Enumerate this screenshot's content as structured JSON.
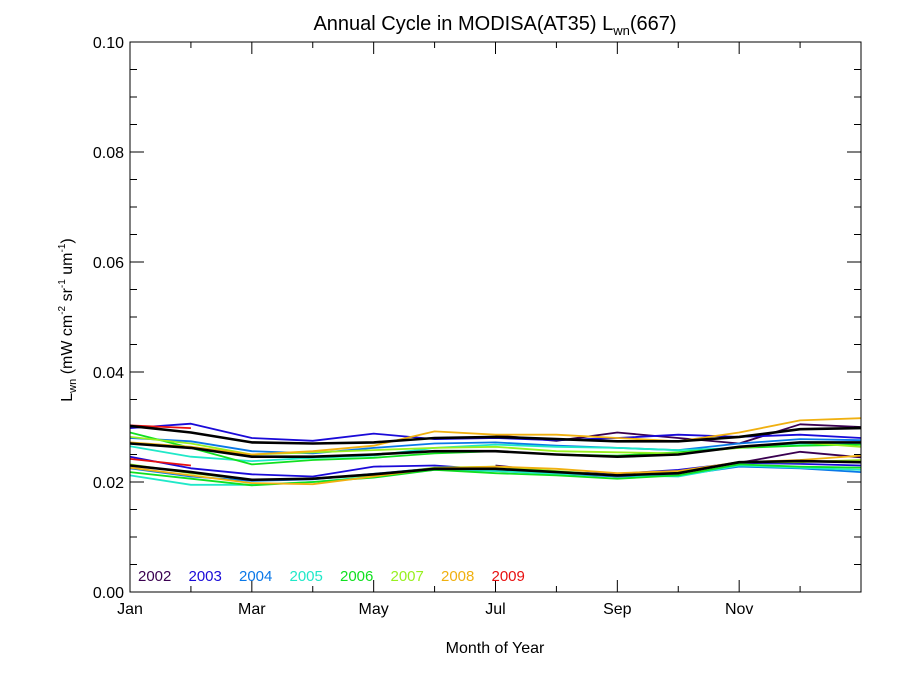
{
  "chart_data": {
    "type": "line",
    "title": {
      "main": "Annual Cycle in MODISA(AT35) L",
      "sub": "wn",
      "tail": "(667)"
    },
    "xlabel": "Month of Year",
    "ylabel": {
      "pre": "L",
      "sub": "wn",
      "units_parts": [
        {
          "t": " (mW cm",
          "s": false
        },
        {
          "t": "-2",
          "s": true
        },
        {
          "t": " sr",
          "s": false
        },
        {
          "t": "-1",
          "s": true
        },
        {
          "t": " um",
          "s": false
        },
        {
          "t": "-1",
          "s": true
        },
        {
          "t": ")",
          "s": false
        }
      ]
    },
    "xlim": [
      1,
      13
    ],
    "ylim": [
      0.0,
      0.1
    ],
    "x_ticks": [
      1,
      3,
      5,
      7,
      9,
      11
    ],
    "x_tick_labels": [
      "Jan",
      "Mar",
      "May",
      "Jul",
      "Sep",
      "Nov"
    ],
    "x_minor_ticks": [
      1,
      2,
      3,
      4,
      5,
      6,
      7,
      8,
      9,
      10,
      11,
      12,
      13
    ],
    "y_ticks": [
      0.0,
      0.02,
      0.04,
      0.06,
      0.08,
      0.1
    ],
    "y_tick_labels": [
      "0.00",
      "0.02",
      "0.04",
      "0.06",
      "0.08",
      "0.10"
    ],
    "y_minor_step": 0.005,
    "legend_placement": "bottom-left",
    "series": [
      {
        "name": "2002",
        "color": "#3a0050",
        "kind": "upper",
        "x": [
          7,
          8,
          9,
          10,
          11,
          12,
          13
        ],
        "y": [
          0.0285,
          0.0275,
          0.029,
          0.028,
          0.027,
          0.0305,
          0.03
        ]
      },
      {
        "name": "2002",
        "color": "#3a0050",
        "kind": "lower",
        "x": [
          7,
          8,
          9,
          10,
          11,
          12,
          13
        ],
        "y": [
          0.023,
          0.0218,
          0.021,
          0.022,
          0.0235,
          0.0255,
          0.0245
        ]
      },
      {
        "name": "2003",
        "color": "#1a0ad8",
        "kind": "upper",
        "x": [
          1,
          2,
          3,
          4,
          5,
          6,
          7,
          8,
          9,
          10,
          11,
          12,
          13
        ],
        "y": [
          0.0298,
          0.0306,
          0.028,
          0.0275,
          0.0288,
          0.0278,
          0.028,
          0.0276,
          0.028,
          0.0286,
          0.0282,
          0.0286,
          0.028
        ]
      },
      {
        "name": "2003",
        "color": "#1a0ad8",
        "kind": "lower",
        "x": [
          1,
          2,
          3,
          4,
          5,
          6,
          7,
          8,
          9,
          10,
          11,
          12,
          13
        ],
        "y": [
          0.0246,
          0.0225,
          0.0214,
          0.021,
          0.0228,
          0.023,
          0.0222,
          0.0218,
          0.0215,
          0.0222,
          0.0235,
          0.0233,
          0.023
        ]
      },
      {
        "name": "2004",
        "color": "#0a78e8",
        "kind": "upper",
        "x": [
          1,
          2,
          3,
          4,
          5,
          6,
          7,
          8,
          9,
          10,
          11,
          12,
          13
        ],
        "y": [
          0.028,
          0.0274,
          0.0256,
          0.0252,
          0.0262,
          0.027,
          0.0272,
          0.0266,
          0.0262,
          0.0258,
          0.027,
          0.0278,
          0.0276
        ]
      },
      {
        "name": "2004",
        "color": "#0a78e8",
        "kind": "lower",
        "x": [
          1,
          2,
          3,
          4,
          5,
          6,
          7,
          8,
          9,
          10,
          11,
          12,
          13
        ],
        "y": [
          0.0225,
          0.021,
          0.0202,
          0.0205,
          0.0215,
          0.0225,
          0.022,
          0.0215,
          0.021,
          0.0212,
          0.0228,
          0.0225,
          0.0218
        ]
      },
      {
        "name": "2005",
        "color": "#20e8c8",
        "kind": "upper",
        "x": [
          1,
          2,
          3,
          4,
          5,
          6,
          7,
          8,
          9,
          10,
          11,
          12,
          13
        ],
        "y": [
          0.0265,
          0.0246,
          0.0238,
          0.0244,
          0.0248,
          0.0262,
          0.0268,
          0.0264,
          0.0262,
          0.0258,
          0.0262,
          0.027,
          0.0268
        ]
      },
      {
        "name": "2005",
        "color": "#20e8c8",
        "kind": "lower",
        "x": [
          1,
          2,
          3,
          4,
          5,
          6,
          7,
          8,
          9,
          10,
          11,
          12,
          13
        ],
        "y": [
          0.0212,
          0.0195,
          0.0195,
          0.02,
          0.021,
          0.0222,
          0.022,
          0.0215,
          0.0212,
          0.021,
          0.023,
          0.0226,
          0.0222
        ]
      },
      {
        "name": "2006",
        "color": "#10e020",
        "kind": "upper",
        "x": [
          1,
          2,
          3,
          4,
          5,
          6,
          7,
          8,
          9,
          10,
          11,
          12,
          13
        ],
        "y": [
          0.029,
          0.0262,
          0.0232,
          0.024,
          0.0244,
          0.0252,
          0.0256,
          0.025,
          0.0248,
          0.0254,
          0.0262,
          0.0266,
          0.0268
        ]
      },
      {
        "name": "2006",
        "color": "#10e020",
        "kind": "lower",
        "x": [
          1,
          2,
          3,
          4,
          5,
          6,
          7,
          8,
          9,
          10,
          11,
          12,
          13
        ],
        "y": [
          0.0218,
          0.0206,
          0.0194,
          0.02,
          0.0208,
          0.0222,
          0.0216,
          0.0212,
          0.0206,
          0.0212,
          0.0232,
          0.0228,
          0.0226
        ]
      },
      {
        "name": "2007",
        "color": "#98f020",
        "kind": "upper",
        "x": [
          1,
          2,
          3,
          4,
          5,
          6,
          7,
          8,
          9,
          10,
          11,
          12,
          13
        ],
        "y": [
          0.0282,
          0.027,
          0.025,
          0.0254,
          0.0258,
          0.0262,
          0.0264,
          0.0256,
          0.0254,
          0.0252,
          0.0262,
          0.0272,
          0.0264
        ]
      },
      {
        "name": "2007",
        "color": "#98f020",
        "kind": "lower",
        "x": [
          1,
          2,
          3,
          4,
          5,
          6,
          7,
          8,
          9,
          10,
          11,
          12,
          13
        ],
        "y": [
          0.0232,
          0.0216,
          0.0204,
          0.0206,
          0.0212,
          0.0226,
          0.0228,
          0.022,
          0.0212,
          0.0218,
          0.0236,
          0.0236,
          0.024
        ]
      },
      {
        "name": "2008",
        "color": "#f0b010",
        "kind": "upper",
        "x": [
          1,
          2,
          3,
          4,
          5,
          6,
          7,
          8,
          9,
          10,
          11,
          12,
          13
        ],
        "y": [
          0.0272,
          0.0264,
          0.025,
          0.0256,
          0.0266,
          0.0292,
          0.0286,
          0.0286,
          0.028,
          0.0274,
          0.029,
          0.0312,
          0.0316
        ]
      },
      {
        "name": "2008",
        "color": "#f0b010",
        "kind": "lower",
        "x": [
          1,
          2,
          3,
          4,
          5,
          6,
          7,
          8,
          9,
          10,
          11,
          12,
          13
        ],
        "y": [
          0.0226,
          0.0212,
          0.0198,
          0.0196,
          0.021,
          0.0225,
          0.0228,
          0.0224,
          0.0216,
          0.022,
          0.0236,
          0.024,
          0.0248
        ]
      },
      {
        "name": "2009",
        "color": "#e81010",
        "kind": "upper",
        "x": [
          1,
          2
        ],
        "y": [
          0.0303,
          0.0298
        ]
      },
      {
        "name": "2009",
        "color": "#e81010",
        "kind": "lower",
        "x": [
          1,
          2
        ],
        "y": [
          0.0242,
          0.023
        ]
      },
      {
        "name": "",
        "color": "#000000",
        "kind": "mean-upper",
        "x": [
          1,
          2,
          3,
          4,
          5,
          6,
          7,
          8,
          9,
          10,
          11,
          12,
          13
        ],
        "y": [
          0.0302,
          0.029,
          0.0272,
          0.027,
          0.0272,
          0.028,
          0.0282,
          0.0278,
          0.0274,
          0.0274,
          0.0282,
          0.0296,
          0.0298
        ]
      },
      {
        "name": "",
        "color": "#000000",
        "kind": "mean-mid",
        "x": [
          1,
          2,
          3,
          4,
          5,
          6,
          7,
          8,
          9,
          10,
          11,
          12,
          13
        ],
        "y": [
          0.027,
          0.0262,
          0.0246,
          0.0246,
          0.025,
          0.0256,
          0.0256,
          0.025,
          0.0246,
          0.025,
          0.0264,
          0.0272,
          0.0272
        ]
      },
      {
        "name": "",
        "color": "#000000",
        "kind": "mean-lower",
        "x": [
          1,
          2,
          3,
          4,
          5,
          6,
          7,
          8,
          9,
          10,
          11,
          12,
          13
        ],
        "y": [
          0.023,
          0.0218,
          0.0204,
          0.0206,
          0.0214,
          0.0224,
          0.0224,
          0.0218,
          0.0212,
          0.0216,
          0.0236,
          0.0238,
          0.0236
        ]
      }
    ],
    "legend": [
      {
        "label": "2002",
        "color": "#3a0050"
      },
      {
        "label": "2003",
        "color": "#1a0ad8"
      },
      {
        "label": "2004",
        "color": "#0a78e8"
      },
      {
        "label": "2005",
        "color": "#20e8c8"
      },
      {
        "label": "2006",
        "color": "#10e020"
      },
      {
        "label": "2007",
        "color": "#98f020"
      },
      {
        "label": "2008",
        "color": "#f0b010"
      },
      {
        "label": "2009",
        "color": "#e81010"
      }
    ]
  }
}
